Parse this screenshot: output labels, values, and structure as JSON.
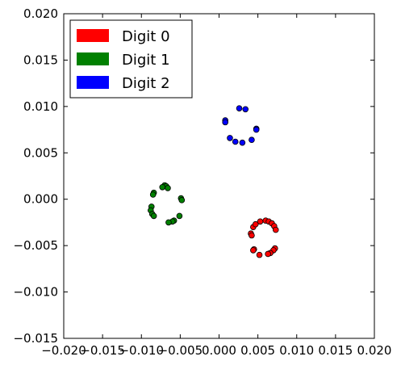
{
  "chart_data": {
    "type": "scatter",
    "title": "",
    "xlabel": "",
    "ylabel": "",
    "xlim": [
      -0.02,
      0.02
    ],
    "ylim": [
      -0.015,
      0.02
    ],
    "xticks": [
      -0.02,
      -0.015,
      -0.01,
      -0.005,
      0.0,
      0.005,
      0.01,
      0.015,
      0.02
    ],
    "yticks": [
      -0.015,
      -0.01,
      -0.005,
      0.0,
      0.005,
      0.01,
      0.015,
      0.02
    ],
    "xtick_labels": [
      "−0.020",
      "−0.015",
      "−0.010",
      "−0.005",
      "0.000",
      "0.005",
      "0.010",
      "0.015",
      "0.020"
    ],
    "ytick_labels": [
      "−0.015",
      "−0.010",
      "−0.005",
      "0.000",
      "0.005",
      "0.010",
      "0.015",
      "0.020"
    ],
    "grid": false,
    "legend": {
      "position": "top-left"
    },
    "series": [
      {
        "name": "Digit 0",
        "color": "#ff0000",
        "points": [
          [
            0.0041,
            -0.0037
          ],
          [
            0.0042,
            -0.0039
          ],
          [
            0.0044,
            -0.003
          ],
          [
            0.0047,
            -0.0027
          ],
          [
            0.0053,
            -0.0024
          ],
          [
            0.006,
            -0.0023
          ],
          [
            0.0064,
            -0.0024
          ],
          [
            0.0068,
            -0.0026
          ],
          [
            0.0071,
            -0.0029
          ],
          [
            0.0073,
            -0.0033
          ],
          [
            0.0072,
            -0.0053
          ],
          [
            0.007,
            -0.0055
          ],
          [
            0.0066,
            -0.0058
          ],
          [
            0.0063,
            -0.0059
          ],
          [
            0.0052,
            -0.006
          ],
          [
            0.0045,
            -0.0054
          ],
          [
            0.0044,
            -0.0055
          ]
        ]
      },
      {
        "name": "Digit 1",
        "color": "#008000",
        "points": [
          [
            -0.007,
            0.0015
          ],
          [
            -0.0068,
            0.0014
          ],
          [
            -0.0073,
            0.0013
          ],
          [
            -0.0066,
            0.0012
          ],
          [
            -0.0084,
            0.0007
          ],
          [
            -0.0085,
            0.0005
          ],
          [
            -0.0049,
            0.0001
          ],
          [
            -0.0048,
            -0.0001
          ],
          [
            -0.0087,
            -0.0008
          ],
          [
            -0.0088,
            -0.0012
          ],
          [
            -0.0086,
            -0.0016
          ],
          [
            -0.0084,
            -0.0018
          ],
          [
            -0.0051,
            -0.0018
          ],
          [
            -0.0058,
            -0.0023
          ],
          [
            -0.006,
            -0.0024
          ],
          [
            -0.0065,
            -0.0025
          ]
        ]
      },
      {
        "name": "Digit 2",
        "color": "#0000ff",
        "points": [
          [
            0.0026,
            0.0098
          ],
          [
            0.0034,
            0.0097
          ],
          [
            0.0008,
            0.0085
          ],
          [
            0.0008,
            0.0083
          ],
          [
            0.0048,
            0.0076
          ],
          [
            0.0048,
            0.0075
          ],
          [
            0.0014,
            0.0066
          ],
          [
            0.0042,
            0.0064
          ],
          [
            0.0021,
            0.0062
          ],
          [
            0.003,
            0.0061
          ]
        ]
      }
    ]
  }
}
